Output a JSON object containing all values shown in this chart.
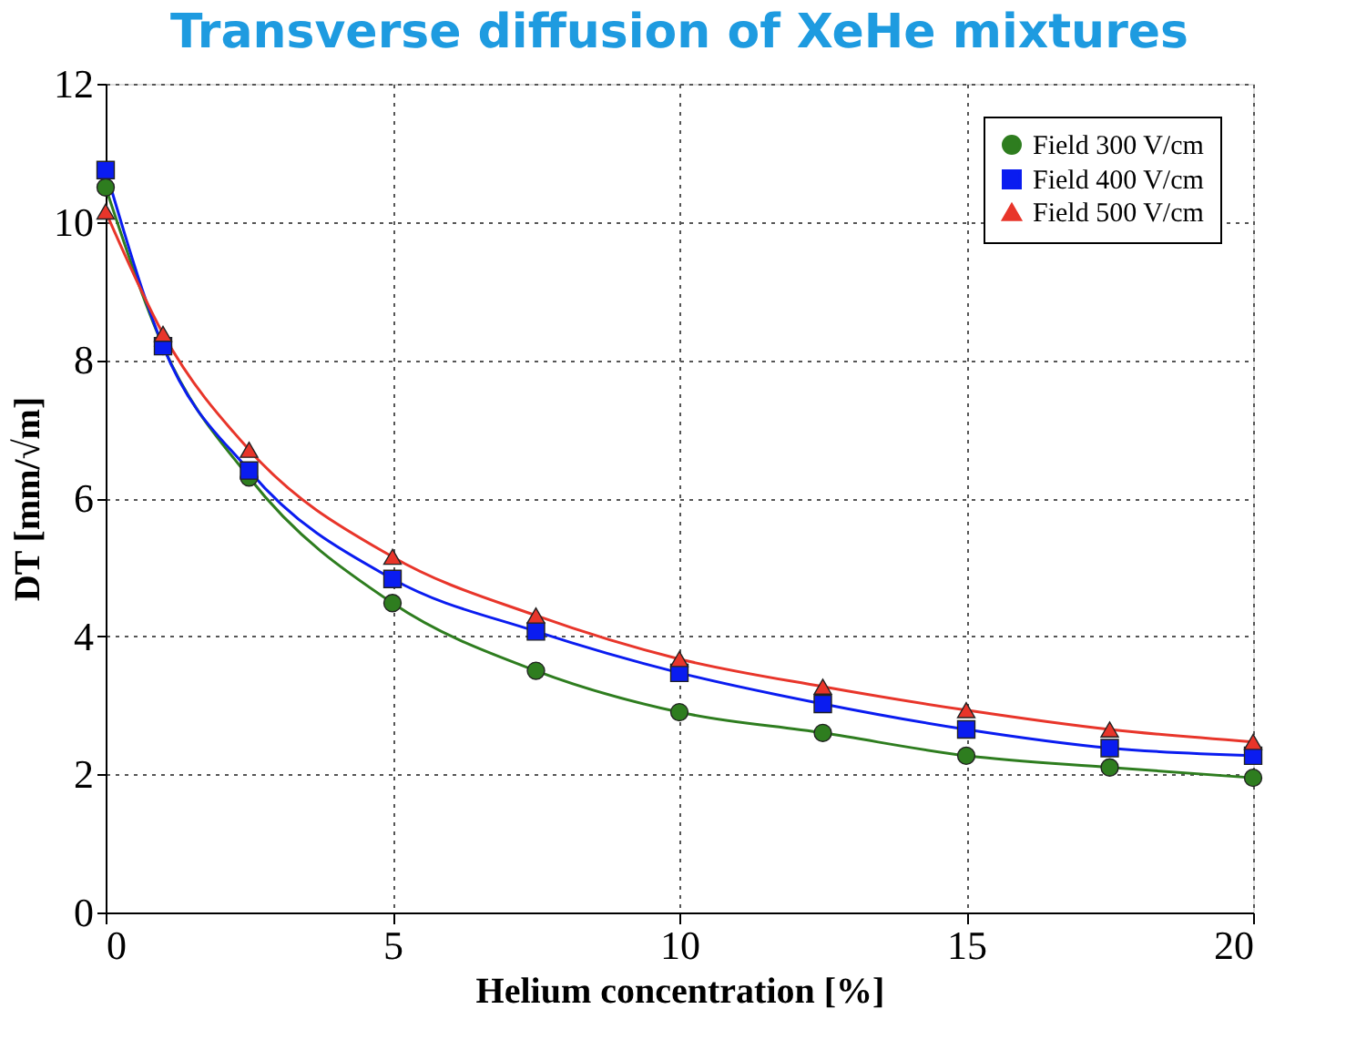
{
  "chart_data": {
    "type": "line",
    "title": "Transverse diffusion of XeHe mixtures",
    "xlabel": "Helium concentration [%]",
    "ylabel": "DT [mm/√m]",
    "x": [
      0,
      1,
      2.5,
      5,
      7.5,
      10,
      12.5,
      15,
      17.5,
      20
    ],
    "series": [
      {
        "name": "Field 300 V/cm",
        "color": "#2e7d1f",
        "marker": "circle",
        "values": [
          10.5,
          8.2,
          6.3,
          4.48,
          3.5,
          2.9,
          2.6,
          2.27,
          2.1,
          1.95
        ]
      },
      {
        "name": "Field 400 V/cm",
        "color": "#0a1cf0",
        "marker": "square",
        "values": [
          10.75,
          8.2,
          6.4,
          4.83,
          4.07,
          3.47,
          3.02,
          2.65,
          2.38,
          2.27
        ]
      },
      {
        "name": "Field 500 V/cm",
        "color": "#e8352a",
        "marker": "triangle",
        "values": [
          10.15,
          8.38,
          6.7,
          5.15,
          4.3,
          3.67,
          3.27,
          2.93,
          2.65,
          2.47
        ]
      }
    ],
    "xlim": [
      0,
      20
    ],
    "xticks": [
      0,
      5,
      10,
      15,
      20
    ],
    "ylim": [
      0,
      12
    ],
    "yticks": [
      0,
      2,
      4,
      6,
      8,
      10,
      12
    ],
    "grid": true,
    "legend": "top right",
    "line_style": "solid"
  }
}
